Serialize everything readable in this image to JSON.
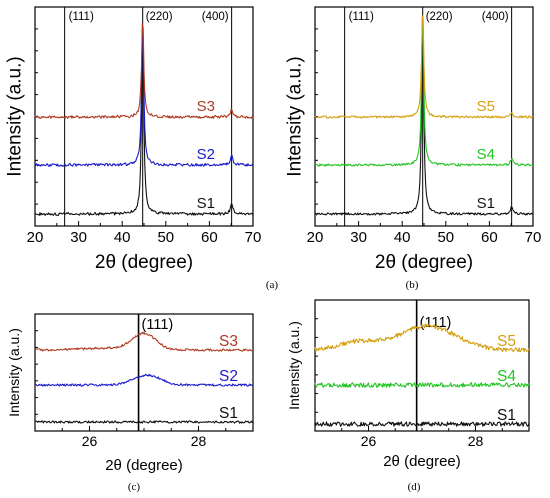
{
  "panels": [
    {
      "id": "a",
      "caption": "(a)",
      "xlabel": "2θ (degree)",
      "ylabel": "Intensity (a.u.)",
      "peak_labels": [
        "(111)",
        "(220)",
        "(400)"
      ]
    },
    {
      "id": "b",
      "caption": "(b)",
      "xlabel": "2θ (degree)",
      "ylabel": "Intensity (a.u.)",
      "peak_labels": [
        "(111)",
        "(220)",
        "(400)"
      ]
    },
    {
      "id": "c",
      "caption": "(c)",
      "xlabel": "2θ (degree)",
      "ylabel": "Intensity (a.u.)",
      "peak_labels": [
        "(111)"
      ]
    },
    {
      "id": "d",
      "caption": "(d)",
      "xlabel": "2θ (degree)",
      "ylabel": "Intensity (a.u.)",
      "peak_labels": [
        "(111)"
      ]
    }
  ],
  "chart_data": [
    {
      "type": "line",
      "panel": "a",
      "xlabel": "2θ (degree)",
      "ylabel": "Intensity (a.u.)",
      "xlim": [
        20,
        70
      ],
      "x_ticks": [
        20,
        30,
        40,
        50,
        60,
        70
      ],
      "reference_lines": [
        {
          "x": 26.8,
          "label": "(111)"
        },
        {
          "x": 44.7,
          "label": "(220)"
        },
        {
          "x": 65.1,
          "label": "(400)"
        }
      ],
      "series": [
        {
          "name": "S1",
          "color": "#111111",
          "peaks": [
            {
              "x": 44.7,
              "height": "strong"
            },
            {
              "x": 65.1,
              "height": "weak"
            }
          ]
        },
        {
          "name": "S2",
          "color": "#1a1acc",
          "peaks": [
            {
              "x": 44.7,
              "height": "strong"
            },
            {
              "x": 65.1,
              "height": "weak"
            }
          ]
        },
        {
          "name": "S3",
          "color": "#b03a22",
          "peaks": [
            {
              "x": 44.7,
              "height": "strong"
            },
            {
              "x": 65.1,
              "height": "weak"
            }
          ]
        }
      ]
    },
    {
      "type": "line",
      "panel": "b",
      "xlabel": "2θ (degree)",
      "ylabel": "Intensity (a.u.)",
      "xlim": [
        20,
        70
      ],
      "x_ticks": [
        20,
        30,
        40,
        50,
        60,
        70
      ],
      "reference_lines": [
        {
          "x": 26.8,
          "label": "(111)"
        },
        {
          "x": 44.7,
          "label": "(220)"
        },
        {
          "x": 65.1,
          "label": "(400)"
        }
      ],
      "series": [
        {
          "name": "S1",
          "color": "#111111",
          "peaks": [
            {
              "x": 44.7,
              "height": "strong"
            },
            {
              "x": 65.1,
              "height": "weak"
            }
          ]
        },
        {
          "name": "S4",
          "color": "#22c422",
          "peaks": [
            {
              "x": 44.7,
              "height": "strong"
            },
            {
              "x": 65.1,
              "height": "weak"
            }
          ]
        },
        {
          "name": "S5",
          "color": "#d4a010",
          "peaks": [
            {
              "x": 44.7,
              "height": "strong"
            },
            {
              "x": 65.1,
              "height": "weak"
            }
          ]
        }
      ]
    },
    {
      "type": "line",
      "panel": "c",
      "xlabel": "2θ (degree)",
      "ylabel": "Intensity (a.u.)",
      "xlim": [
        25,
        29
      ],
      "x_ticks": [
        26,
        28
      ],
      "reference_lines": [
        {
          "x": 26.9,
          "label": "(111)"
        }
      ],
      "series": [
        {
          "name": "S1",
          "color": "#111111",
          "peaks": []
        },
        {
          "name": "S2",
          "color": "#1a1acc",
          "peaks": [
            {
              "x": 27.05,
              "height": "weak"
            }
          ]
        },
        {
          "name": "S3",
          "color": "#b03a22",
          "peaks": [
            {
              "x": 27.0,
              "height": "medium"
            }
          ]
        }
      ]
    },
    {
      "type": "line",
      "panel": "d",
      "xlabel": "2θ (degree)",
      "ylabel": "Intensity (a.u.)",
      "xlim": [
        25,
        29
      ],
      "x_ticks": [
        26,
        28
      ],
      "reference_lines": [
        {
          "x": 26.9,
          "label": "(111)"
        }
      ],
      "series": [
        {
          "name": "S1",
          "color": "#111111",
          "peaks": []
        },
        {
          "name": "S4",
          "color": "#22c422",
          "peaks": []
        },
        {
          "name": "S5",
          "color": "#d4a010",
          "peaks": [
            {
              "x": 27.1,
              "height": "medium"
            }
          ]
        }
      ]
    }
  ]
}
